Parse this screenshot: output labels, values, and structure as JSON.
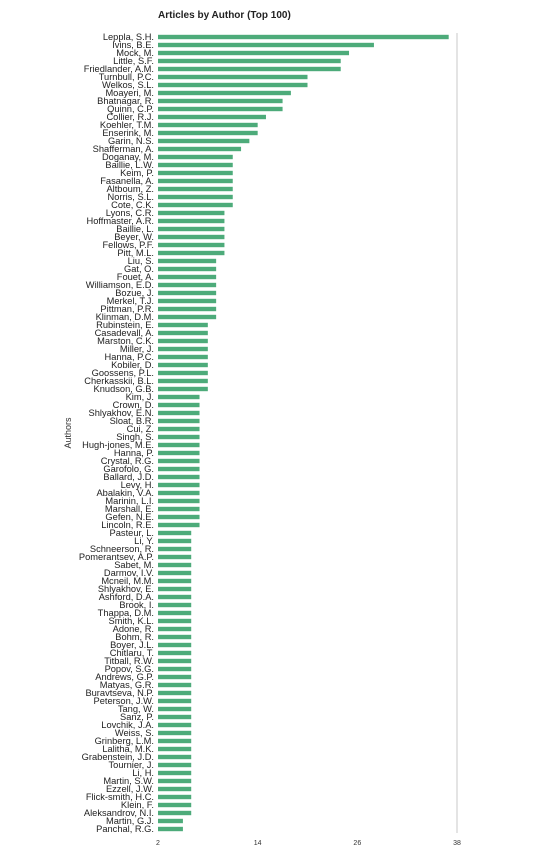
{
  "chart_data": {
    "type": "bar",
    "orientation": "horizontal",
    "title": "Articles by Author (Top 100)",
    "xlabel": "",
    "ylabel": "Authors",
    "xlim": [
      2,
      38
    ],
    "xticks": [
      2,
      14,
      26,
      38
    ],
    "grid": false,
    "bar_color": "#4dab7a",
    "categories": [
      "Leppla, S.H.",
      "Ivins, B.E.",
      "Mock, M.",
      "Little, S.F.",
      "Friedlander, A.M.",
      "Turnbull, P.C.",
      "Welkos, S.L.",
      "Moayeri, M.",
      "Bhatnagar, R.",
      "Quinn, C.P.",
      "Collier, R.J.",
      "Koehler, T.M.",
      "Enserink, M.",
      "Garin, N.S.",
      "Shafferman, A.",
      "Doganay, M.",
      "Baillie, L.W.",
      "Keim, P.",
      "Fasanella, A.",
      "Altboum, Z.",
      "Norris, S.L.",
      "Cote, C.K.",
      "Lyons, C.R.",
      "Hoffmaster, A.R.",
      "Baillie, L.",
      "Beyer, W.",
      "Fellows, P.F.",
      "Pitt, M.L.",
      "Liu, S.",
      "Gat, O.",
      "Fouet, A.",
      "Williamson, E.D.",
      "Bozue, J.",
      "Merkel, T.J.",
      "Pittman, P.R.",
      "Klinman, D.M.",
      "Rubinstein, E.",
      "Casadevall, A.",
      "Marston, C.K.",
      "Miller, J.",
      "Hanna, P.C.",
      "Kobiler, D.",
      "Goossens, P.L.",
      "Cherkasskii, B.L.",
      "Knudson, G.B.",
      "Kim, J.",
      "Crown, D.",
      "Shlyakhov, E.N.",
      "Sloat, B.R.",
      "Cui, Z.",
      "Singh, S.",
      "Hugh-jones, M.E.",
      "Hanna, P.",
      "Crystal, R.G.",
      "Garofolo, G.",
      "Ballard, J.D.",
      "Levy, H.",
      "Abalakin, V.A.",
      "Marinin, L.I.",
      "Marshall, E.",
      "Gefen, N.E.",
      "Lincoln, R.E.",
      "Pasteur, L.",
      "Li, Y.",
      "Schneerson, R.",
      "Pomerantsev, A.P.",
      "Sabet, M.",
      "Darmov, I.V.",
      "Mcneil, M.M.",
      "Shlyakhov, E.",
      "Ashford, D.A.",
      "Brook, I.",
      "Thappa, D.M.",
      "Smith, K.L.",
      "Adone, R.",
      "Bohm, R.",
      "Boyer, J.L.",
      "Chitlaru, T.",
      "Titball, R.W.",
      "Popov, S.G.",
      "Andrews, G.P.",
      "Matyas, G.R.",
      "Buravtseva, N.P.",
      "Peterson, J.W.",
      "Tang, W.",
      "Sanz, P.",
      "Lovchik, J.A.",
      "Weiss, S.",
      "Grinberg, L.M.",
      "Lalitha, M.K.",
      "Grabenstein, J.D.",
      "Tournier, J.",
      "Li, H.",
      "Martin, S.W.",
      "Ezzell, J.W.",
      "Flick-smith, H.C.",
      "Klein, F.",
      "Aleksandrov, N.I.",
      "Martin, G.J.",
      "Panchal, R.G."
    ],
    "values": [
      37,
      28,
      25,
      24,
      24,
      20,
      20,
      18,
      17,
      17,
      15,
      14,
      14,
      13,
      12,
      11,
      11,
      11,
      11,
      11,
      11,
      11,
      10,
      10,
      10,
      10,
      10,
      10,
      9,
      9,
      9,
      9,
      9,
      9,
      9,
      9,
      8,
      8,
      8,
      8,
      8,
      8,
      8,
      8,
      8,
      7,
      7,
      7,
      7,
      7,
      7,
      7,
      7,
      7,
      7,
      7,
      7,
      7,
      7,
      7,
      7,
      7,
      6,
      6,
      6,
      6,
      6,
      6,
      6,
      6,
      6,
      6,
      6,
      6,
      6,
      6,
      6,
      6,
      6,
      6,
      6,
      6,
      6,
      6,
      6,
      6,
      6,
      6,
      6,
      6,
      6,
      6,
      6,
      6,
      6,
      6,
      6,
      6,
      5,
      5
    ]
  }
}
